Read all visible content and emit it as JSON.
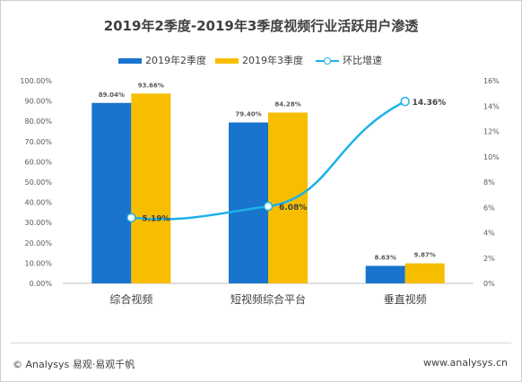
{
  "colors": {
    "q2": "#1874cd",
    "q3": "#f7be00",
    "growth": "#1cb1e8"
  },
  "footer": {
    "left": "© Analysys 易观·易观千帆",
    "right": "www.analysys.cn"
  },
  "chart_data": {
    "type": "bar",
    "title": "2019年2季度-2019年3季度视频行业活跃用户渗透",
    "categories": [
      "综合视频",
      "短视频综合平台",
      "垂直视频"
    ],
    "series": [
      {
        "name": "2019年2季度",
        "type": "bar",
        "axis": "left",
        "values": [
          89.04,
          79.4,
          8.63
        ],
        "labels": [
          "89.04%",
          "79.40%",
          "8.63%"
        ]
      },
      {
        "name": "2019年3季度",
        "type": "bar",
        "axis": "left",
        "values": [
          93.66,
          84.28,
          9.87
        ],
        "labels": [
          "93.66%",
          "84.28%",
          "9.87%"
        ]
      },
      {
        "name": "环比增速",
        "type": "line",
        "axis": "right",
        "values": [
          5.19,
          6.08,
          14.36
        ],
        "labels": [
          "5.19%",
          "6.08%",
          "14.36%"
        ]
      }
    ],
    "y_left": {
      "min": 0,
      "max": 100,
      "ticks": [
        "0.00%",
        "10.00%",
        "20.00%",
        "30.00%",
        "40.00%",
        "50.00%",
        "60.00%",
        "70.00%",
        "80.00%",
        "90.00%",
        "100.00%"
      ]
    },
    "y_right": {
      "min": 0,
      "max": 16,
      "ticks": [
        "0%",
        "2%",
        "4%",
        "6%",
        "8%",
        "10%",
        "12%",
        "14%",
        "16%"
      ]
    },
    "legend_position": "top",
    "grid": false
  }
}
